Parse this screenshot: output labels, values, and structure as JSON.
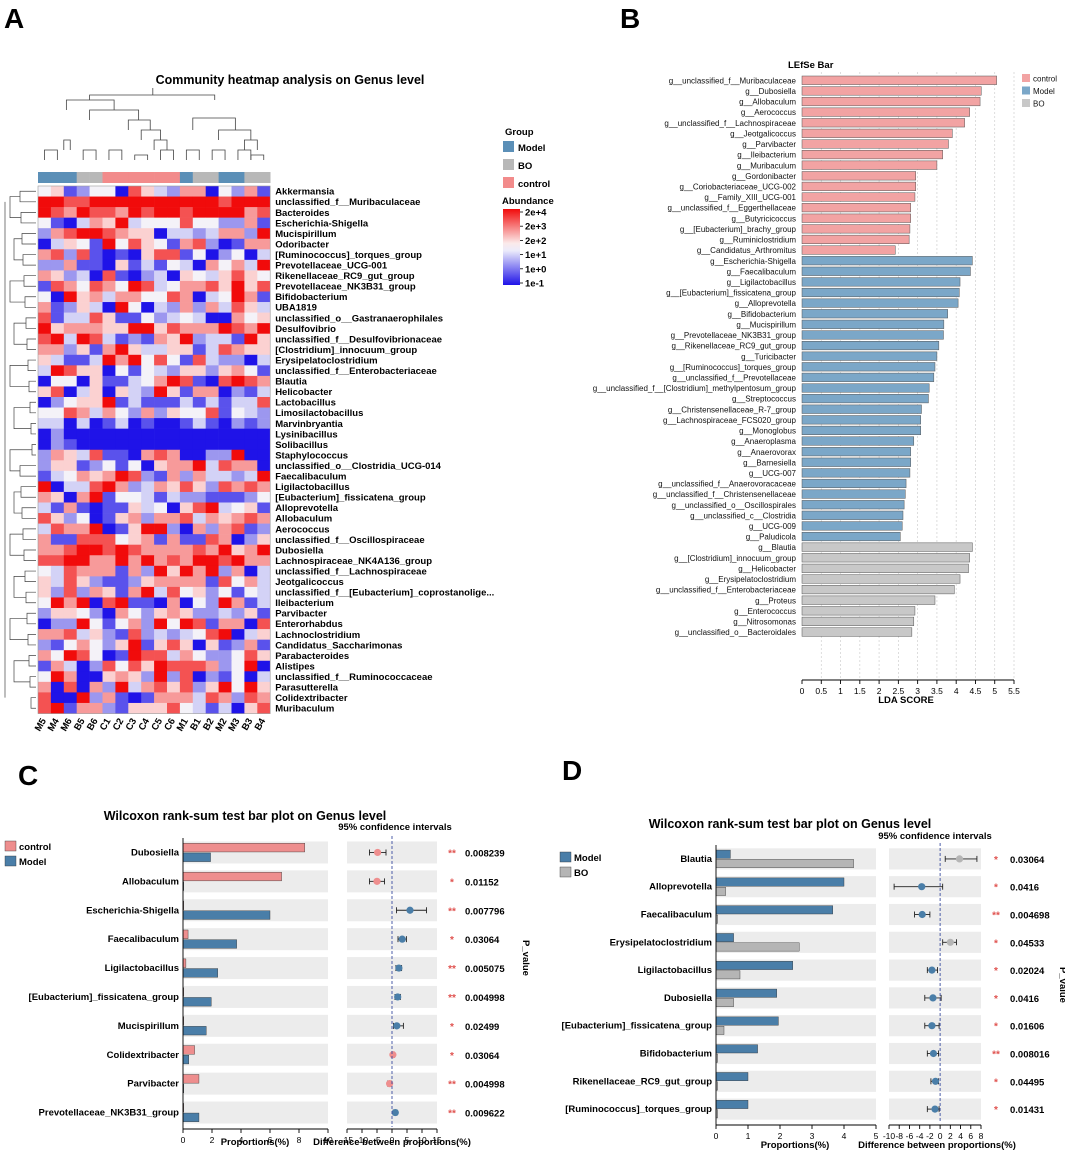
{
  "panels": {
    "a": "A",
    "b": "B",
    "c": "C",
    "d": "D"
  },
  "colors": {
    "control": "#f2a3a3",
    "model": "#5b8fb7",
    "bo": "#bfbfbf",
    "red": "#f10b0b",
    "blue": "#1f13e8",
    "star": "#e0524f"
  },
  "chart_data": [
    {
      "type": "heatmap",
      "title": "Community heatmap analysis on Genus level",
      "legend_group_title": "Group",
      "groups": [
        {
          "name": "Model",
          "color": "#5b8fb7"
        },
        {
          "name": "BO",
          "color": "#b8b8b8"
        },
        {
          "name": "control",
          "color": "#f28b8b"
        }
      ],
      "abundance_title": "Abundance",
      "abundance_ticks": [
        "2e+4",
        "2e+3",
        "2e+2",
        "1e+1",
        "1e+0",
        "1e-1"
      ],
      "columns": [
        "M5",
        "M4",
        "M6",
        "B5",
        "B6",
        "C1",
        "C2",
        "C3",
        "C4",
        "C5",
        "C6",
        "M1",
        "B1",
        "B2",
        "M2",
        "M3",
        "B3",
        "B4"
      ],
      "column_groups": [
        "Model",
        "Model",
        "Model",
        "BO",
        "BO",
        "control",
        "control",
        "control",
        "control",
        "control",
        "control",
        "Model",
        "BO",
        "BO",
        "Model",
        "Model",
        "BO",
        "BO"
      ],
      "rows": [
        "Akkermansia",
        "unclassified_f__Muribaculaceae",
        "Bacteroides",
        "Escherichia-Shigella",
        "Mucispirillum",
        "Odoribacter",
        "[Ruminococcus]_torques_group",
        "Prevotellaceae_UCG-001",
        "Rikenellaceae_RC9_gut_group",
        "Prevotellaceae_NK3B31_group",
        "Bifidobacterium",
        "UBA1819",
        "unclassified_o__Gastranaerophilales",
        "Desulfovibrio",
        "unclassified_f__Desulfovibrionaceae",
        "[Clostridium]_innocuum_group",
        "Erysipelatoclostridium",
        "unclassified_f__Enterobacteriaceae",
        "Blautia",
        "Helicobacter",
        "Lactobacillus",
        "Limosilactobacillus",
        "Marvinbryantia",
        "Lysinibacillus",
        "Solibacillus",
        "Staphylococcus",
        "unclassified_o__Clostridia_UCG-014",
        "Faecalibaculum",
        "Ligilactobacillus",
        "[Eubacterium]_fissicatena_group",
        "Alloprevotella",
        "Allobaculum",
        "Aerococcus",
        "unclassified_f__Oscillospiraceae",
        "Dubosiella",
        "Lachnospiraceae_NK4A136_group",
        "unclassified_f__Lachnospiraceae",
        "Jeotgalicoccus",
        "unclassified_f__[Eubacterium]_coprostanolige...",
        "Ileibacterium",
        "Parvibacter",
        "Enterorhabdus",
        "Lachnoclostridium",
        "Candidatus_Saccharimonas",
        "Parabacteroides",
        "Alistipes",
        "unclassified_f__Ruminococcaceae",
        "Parasutterella",
        "Colidextribacter",
        "Muribaculum"
      ]
    },
    {
      "type": "bar",
      "title": "LEfSe Bar",
      "xlabel": "LDA SCORE",
      "xlim": [
        0,
        5.5
      ],
      "xticks": [
        "0",
        "0.5",
        "1",
        "1.5",
        "2",
        "2.5",
        "3",
        "3.5",
        "4",
        "4.5",
        "5",
        "5.5"
      ],
      "legend": [
        {
          "name": "control",
          "color": "#f2a3a3"
        },
        {
          "name": "Model",
          "color": "#7ba7c8"
        },
        {
          "name": "BO",
          "color": "#c8c8c8"
        }
      ],
      "bars": [
        {
          "label": "g__unclassified_f__Muribaculaceae",
          "value": 5.05,
          "group": "control"
        },
        {
          "label": "g__Dubosiella",
          "value": 4.65,
          "group": "control"
        },
        {
          "label": "g__Allobaculum",
          "value": 4.62,
          "group": "control"
        },
        {
          "label": "g__Aerococcus",
          "value": 4.35,
          "group": "control"
        },
        {
          "label": "g__unclassified_f__Lachnospiraceae",
          "value": 4.22,
          "group": "control"
        },
        {
          "label": "g__Jeotgalicoccus",
          "value": 3.9,
          "group": "control"
        },
        {
          "label": "g__Parvibacter",
          "value": 3.8,
          "group": "control"
        },
        {
          "label": "g__Ileibacterium",
          "value": 3.65,
          "group": "control"
        },
        {
          "label": "g__Muribaculum",
          "value": 3.5,
          "group": "control"
        },
        {
          "label": "g__Gordonibacter",
          "value": 2.95,
          "group": "control"
        },
        {
          "label": "g__Coriobacteriaceae_UCG-002",
          "value": 2.95,
          "group": "control"
        },
        {
          "label": "g__Family_XIII_UCG-001",
          "value": 2.93,
          "group": "control"
        },
        {
          "label": "g__unclassified_f__Eggerthellaceae",
          "value": 2.82,
          "group": "control"
        },
        {
          "label": "g__Butyricicoccus",
          "value": 2.82,
          "group": "control"
        },
        {
          "label": "g__[Eubacterium]_brachy_group",
          "value": 2.8,
          "group": "control"
        },
        {
          "label": "g__Ruminiclostridium",
          "value": 2.78,
          "group": "control"
        },
        {
          "label": "g__Candidatus_Arthromitus",
          "value": 2.42,
          "group": "control"
        },
        {
          "label": "g__Escherichia-Shigella",
          "value": 4.42,
          "group": "Model"
        },
        {
          "label": "g__Faecalibaculum",
          "value": 4.37,
          "group": "Model"
        },
        {
          "label": "g__Ligilactobacillus",
          "value": 4.1,
          "group": "Model"
        },
        {
          "label": "g__[Eubacterium]_fissicatena_group",
          "value": 4.08,
          "group": "Model"
        },
        {
          "label": "g__Alloprevotella",
          "value": 4.05,
          "group": "Model"
        },
        {
          "label": "g__Bifidobacterium",
          "value": 3.78,
          "group": "Model"
        },
        {
          "label": "g__Mucispirillum",
          "value": 3.68,
          "group": "Model"
        },
        {
          "label": "g__Prevotellaceae_NK3B31_group",
          "value": 3.67,
          "group": "Model"
        },
        {
          "label": "g__Rikenellaceae_RC9_gut_group",
          "value": 3.55,
          "group": "Model"
        },
        {
          "label": "g__Turicibacter",
          "value": 3.5,
          "group": "Model"
        },
        {
          "label": "g__[Ruminococcus]_torques_group",
          "value": 3.45,
          "group": "Model"
        },
        {
          "label": "g__unclassified_f__Prevotellaceae",
          "value": 3.42,
          "group": "Model"
        },
        {
          "label": "g__unclassified_f__[Clostridium]_methylpentosum_group",
          "value": 3.3,
          "group": "Model"
        },
        {
          "label": "g__Streptococcus",
          "value": 3.28,
          "group": "Model"
        },
        {
          "label": "g__Christensenellaceae_R-7_group",
          "value": 3.1,
          "group": "Model"
        },
        {
          "label": "g__Lachnospiraceae_FCS020_group",
          "value": 3.08,
          "group": "Model"
        },
        {
          "label": "g__Monoglobus",
          "value": 3.08,
          "group": "Model"
        },
        {
          "label": "g__Anaeroplasma",
          "value": 2.9,
          "group": "Model"
        },
        {
          "label": "g__Anaerovorax",
          "value": 2.82,
          "group": "Model"
        },
        {
          "label": "g__Barnesiella",
          "value": 2.82,
          "group": "Model"
        },
        {
          "label": "g__UCG-007",
          "value": 2.8,
          "group": "Model"
        },
        {
          "label": "g__unclassified_f__Anaerovoracaceae",
          "value": 2.7,
          "group": "Model"
        },
        {
          "label": "g__unclassified_f__Christensenellaceae",
          "value": 2.68,
          "group": "Model"
        },
        {
          "label": "g__unclassified_o__Oscillospirales",
          "value": 2.65,
          "group": "Model"
        },
        {
          "label": "g__unclassified_c__Clostridia",
          "value": 2.62,
          "group": "Model"
        },
        {
          "label": "g__UCG-009",
          "value": 2.6,
          "group": "Model"
        },
        {
          "label": "g__Paludicola",
          "value": 2.55,
          "group": "Model"
        },
        {
          "label": "g__Blautia",
          "value": 4.42,
          "group": "BO"
        },
        {
          "label": "g__[Clostridium]_innocuum_group",
          "value": 4.35,
          "group": "BO"
        },
        {
          "label": "g__Helicobacter",
          "value": 4.32,
          "group": "BO"
        },
        {
          "label": "g__Erysipelatoclostridium",
          "value": 4.1,
          "group": "BO"
        },
        {
          "label": "g__unclassified_f__Enterobacteriaceae",
          "value": 3.95,
          "group": "BO"
        },
        {
          "label": "g__Proteus",
          "value": 3.45,
          "group": "BO"
        },
        {
          "label": "g__Enterococcus",
          "value": 2.93,
          "group": "BO"
        },
        {
          "label": "g__Nitrosomonas",
          "value": 2.9,
          "group": "BO"
        },
        {
          "label": "g__unclassified_o__Bacteroidales",
          "value": 2.85,
          "group": "BO"
        }
      ]
    },
    {
      "type": "bar",
      "title": "Wilcoxon rank-sum test bar plot on Genus level",
      "series": [
        {
          "name": "control",
          "color": "#ee8e8e"
        },
        {
          "name": "Model",
          "color": "#4a7ea8"
        }
      ],
      "categories": [
        "Dubosiella",
        "Allobaculum",
        "Escherichia-Shigella",
        "Faecalibaculum",
        "Ligilactobacillus",
        "[Eubacterium]_fissicatena_group",
        "Mucispirillum",
        "Colidextribacter",
        "Parvibacter",
        "Prevotellaceae_NK3B31_group"
      ],
      "values_a": [
        8.4,
        6.8,
        0.05,
        0.35,
        0.2,
        0.05,
        0.05,
        0.8,
        1.1,
        0.05
      ],
      "values_b": [
        1.9,
        0.05,
        6.0,
        3.7,
        2.4,
        1.95,
        1.6,
        0.4,
        0.05,
        1.1
      ],
      "xlim": [
        0,
        10
      ],
      "xticks": [
        "0",
        "2",
        "4",
        "6",
        "8",
        "10"
      ],
      "xlabel": "Proportions(%)",
      "ci_title": "95% confidence intervals",
      "ci_xlabel": "Difference between proportions(%)",
      "ci_xlim": [
        -15,
        15
      ],
      "ci_xticks": [
        "-15",
        "-10",
        "-5",
        "0",
        "5",
        "10",
        "15"
      ],
      "diff": [
        -4.8,
        -5.0,
        6.0,
        3.4,
        2.3,
        1.9,
        1.6,
        0.3,
        -0.8,
        1.1
      ],
      "ci_low": [
        -7.5,
        -7.5,
        1.5,
        2.0,
        1.3,
        1.0,
        0.5,
        -0.2,
        -1.5,
        0.4
      ],
      "ci_high": [
        -2.0,
        -2.5,
        11.5,
        4.8,
        3.2,
        2.8,
        3.8,
        0.8,
        -0.1,
        1.7
      ],
      "point_group": [
        "control",
        "control",
        "Model",
        "Model",
        "Model",
        "Model",
        "Model",
        "control",
        "control",
        "Model"
      ],
      "pvalue_title": "P_value",
      "stars": [
        "**",
        "*",
        "**",
        "*",
        "**",
        "**",
        "*",
        "*",
        "**",
        "**"
      ],
      "pvalues": [
        "0.008239",
        "0.01152",
        "0.007796",
        "0.03064",
        "0.005075",
        "0.004998",
        "0.02499",
        "0.03064",
        "0.004998",
        "0.009622"
      ]
    },
    {
      "type": "bar",
      "title": "Wilcoxon rank-sum test bar plot on Genus level",
      "series": [
        {
          "name": "Model",
          "color": "#4a7ea8"
        },
        {
          "name": "BO",
          "color": "#b5b5b5"
        }
      ],
      "categories": [
        "Blautia",
        "Alloprevotella",
        "Faecalibaculum",
        "Erysipelatoclostridium",
        "Ligilactobacillus",
        "Dubosiella",
        "[Eubacterium]_fissicatena_group",
        "Bifidobacterium",
        "Rikenellaceae_RC9_gut_group",
        "[Ruminococcus]_torques_group"
      ],
      "values_a": [
        0.45,
        4.0,
        3.65,
        0.55,
        2.4,
        1.9,
        1.95,
        1.3,
        1.0,
        1.0
      ],
      "values_b": [
        4.3,
        0.3,
        0.05,
        2.6,
        0.75,
        0.55,
        0.25,
        0.05,
        0.05,
        0.05
      ],
      "xlim": [
        0,
        5
      ],
      "xticks": [
        "0",
        "1",
        "2",
        "3",
        "4",
        "5"
      ],
      "xlabel": "Proportions(%)",
      "ci_title": "95% confidence intervals",
      "ci_xlabel": "Difference between proportions(%)",
      "ci_xlim": [
        -10,
        8
      ],
      "ci_xticks": [
        "-10",
        "-8",
        "-6",
        "-4",
        "-2",
        "0",
        "2",
        "4",
        "6",
        "8"
      ],
      "diff": [
        3.8,
        -3.6,
        -3.5,
        2.0,
        -1.6,
        -1.4,
        -1.6,
        -1.3,
        -0.9,
        -1.0
      ],
      "ci_low": [
        1.0,
        -9.0,
        -5.0,
        0.5,
        -2.5,
        -3.0,
        -3.0,
        -2.5,
        -1.8,
        -2.5
      ],
      "ci_high": [
        7.2,
        0.5,
        -2.0,
        3.2,
        -0.5,
        0.2,
        -0.2,
        -0.3,
        -0.3,
        -0.2
      ],
      "point_group": [
        "BO",
        "Model",
        "Model",
        "BO",
        "Model",
        "Model",
        "Model",
        "Model",
        "Model",
        "Model"
      ],
      "pvalue_title": "P_value",
      "stars": [
        "*",
        "*",
        "**",
        "*",
        "*",
        "*",
        "*",
        "**",
        "*",
        "*"
      ],
      "pvalues": [
        "0.03064",
        "0.0416",
        "0.004698",
        "0.04533",
        "0.02024",
        "0.0416",
        "0.01606",
        "0.008016",
        "0.04495",
        "0.01431"
      ]
    }
  ]
}
